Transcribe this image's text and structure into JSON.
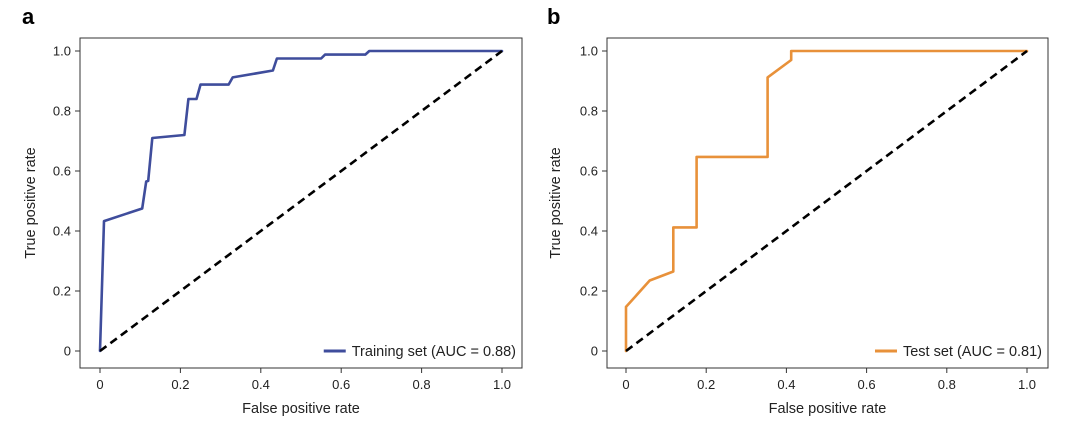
{
  "chart_data": [
    {
      "panel": "a",
      "type": "line",
      "xlabel": "False positive rate",
      "ylabel": "True positive rate",
      "xlim": [
        0,
        1.0
      ],
      "ylim": [
        0,
        1.0
      ],
      "xticks": [
        "0",
        "0.2",
        "0.4",
        "0.6",
        "0.8",
        "1.0"
      ],
      "yticks": [
        "0",
        "0.2",
        "0.4",
        "0.6",
        "0.8",
        "1.0"
      ],
      "grid": false,
      "legend_position": "bottom-right",
      "series": [
        {
          "name": "Training set (AUC = 0.88)",
          "color": "#3f4d9c",
          "x": [
            0,
            0.01,
            0.105,
            0.115,
            0.12,
            0.13,
            0.21,
            0.22,
            0.24,
            0.25,
            0.32,
            0.33,
            0.43,
            0.44,
            0.55,
            0.56,
            0.66,
            0.67,
            1.0
          ],
          "y": [
            0,
            0.433,
            0.475,
            0.565,
            0.567,
            0.71,
            0.72,
            0.84,
            0.84,
            0.888,
            0.888,
            0.912,
            0.935,
            0.975,
            0.975,
            0.988,
            0.988,
            1.0,
            1.0
          ]
        },
        {
          "name": "",
          "style": "dashed",
          "color": "#000000",
          "x": [
            0,
            1.0
          ],
          "y": [
            0,
            1.0
          ]
        }
      ]
    },
    {
      "panel": "b",
      "type": "line",
      "xlabel": "False positive rate",
      "ylabel": "True positive rate",
      "xlim": [
        0,
        1.0
      ],
      "ylim": [
        0,
        1.0
      ],
      "xticks": [
        "0",
        "0.2",
        "0.4",
        "0.6",
        "0.8",
        "1.0"
      ],
      "yticks": [
        "0",
        "0.2",
        "0.4",
        "0.6",
        "0.8",
        "1.0"
      ],
      "grid": false,
      "legend_position": "bottom-right",
      "series": [
        {
          "name": "Test set (AUC = 0.81)",
          "color": "#e8913a",
          "x": [
            0,
            0,
            0.059,
            0.118,
            0.118,
            0.176,
            0.176,
            0.353,
            0.353,
            0.412,
            0.412,
            1.0
          ],
          "y": [
            0,
            0.147,
            0.235,
            0.265,
            0.412,
            0.412,
            0.647,
            0.647,
            0.912,
            0.97,
            1.0,
            1.0
          ]
        },
        {
          "name": "",
          "style": "dashed",
          "color": "#000000",
          "x": [
            0,
            1.0
          ],
          "y": [
            0,
            1.0
          ]
        }
      ]
    }
  ],
  "panels": {
    "a_letter": "a",
    "b_letter": "b"
  }
}
